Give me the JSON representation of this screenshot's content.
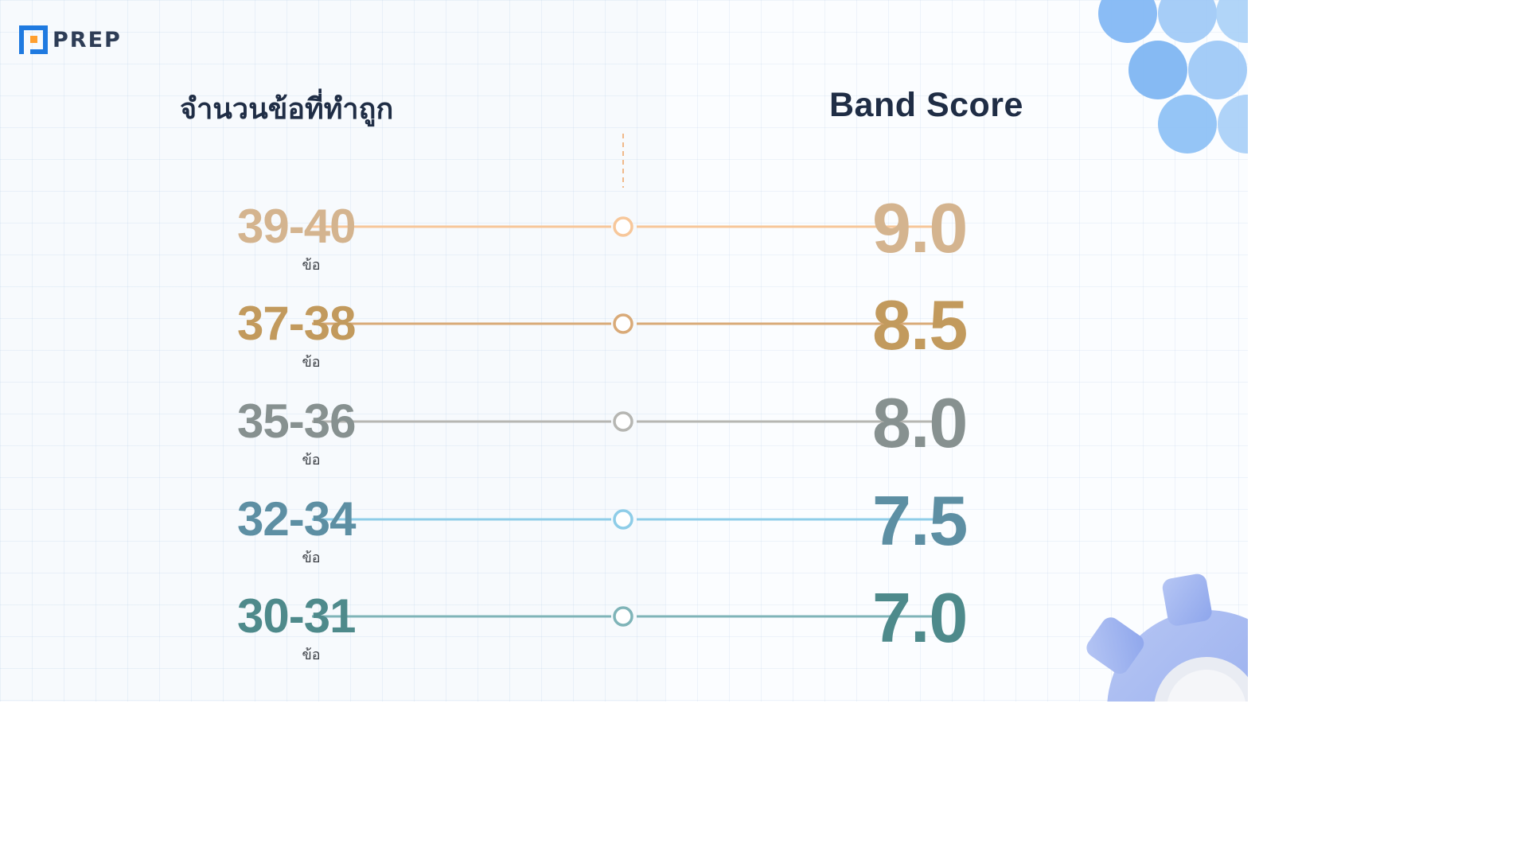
{
  "logo": {
    "text": "PREP"
  },
  "headers": {
    "left": "จำนวนข้อที่ทำถูก",
    "right": "Band Score"
  },
  "rows": [
    {
      "range": "39-40",
      "unit": "ข้อ",
      "band": "9.0",
      "color": "#d4b48f",
      "line_color": "#f7c79a"
    },
    {
      "range": "37-38",
      "unit": "ข้อ",
      "band": "8.5",
      "color": "#c29a5d",
      "line_color": "#d9aa78"
    },
    {
      "range": "35-36",
      "unit": "ข้อ",
      "band": "8.0",
      "color": "#879190",
      "line_color": "#b6b6b2"
    },
    {
      "range": "32-34",
      "unit": "ข้อ",
      "band": "7.5",
      "color": "#5d8fa3",
      "line_color": "#8ecde8"
    },
    {
      "range": "30-31",
      "unit": "ข้อ",
      "band": "7.0",
      "color": "#4e8a8b",
      "line_color": "#7fb4b8"
    }
  ],
  "decor": {
    "logo_colors": [
      "#1f7ae0",
      "#ff9f2e"
    ],
    "circle_color": "#7fb6f2",
    "gear_color": "#9fb4f0"
  }
}
